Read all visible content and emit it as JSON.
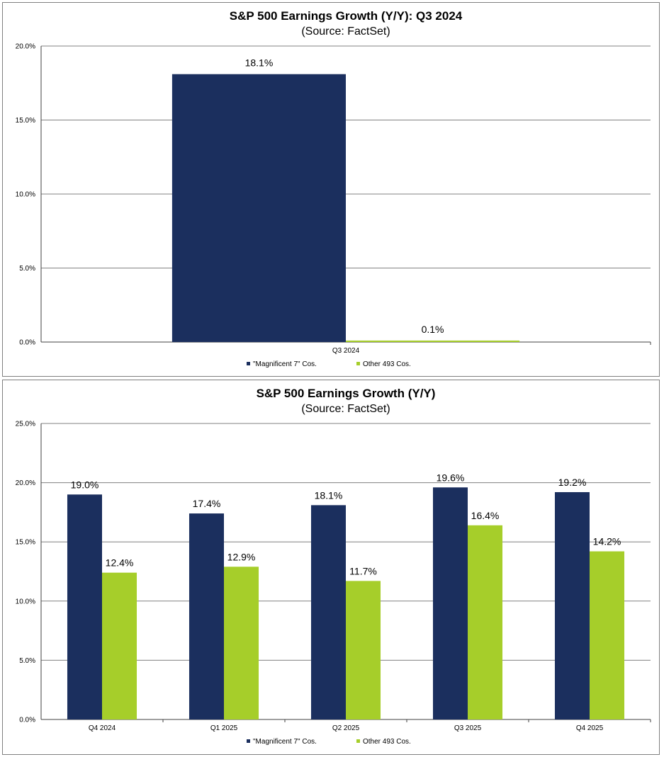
{
  "colors": {
    "magnificent": "#1b2f5e",
    "other": "#a6ce2a",
    "grid": "#808080"
  },
  "chart_data": [
    {
      "type": "bar",
      "title": "S&P 500 Earnings Growth (Y/Y): Q3 2024",
      "subtitle": "(Source: FactSet)",
      "categories": [
        "Q3 2024"
      ],
      "series": [
        {
          "name": "\"Magnificent 7\" Cos.",
          "values": [
            18.1
          ],
          "labels": [
            "18.1%"
          ]
        },
        {
          "name": "Other 493 Cos.",
          "values": [
            0.1
          ],
          "labels": [
            "0.1%"
          ]
        }
      ],
      "ylim": [
        0,
        20
      ],
      "yticks": [
        0,
        5,
        10,
        15,
        20
      ],
      "ytick_labels": [
        "0.0%",
        "5.0%",
        "10.0%",
        "15.0%",
        "20.0%"
      ],
      "grid": true,
      "legend": "bottom-center"
    },
    {
      "type": "bar",
      "title": "S&P 500 Earnings Growth (Y/Y)",
      "subtitle": "(Source: FactSet)",
      "categories": [
        "Q4 2024",
        "Q1 2025",
        "Q2 2025",
        "Q3 2025",
        "Q4 2025"
      ],
      "series": [
        {
          "name": "\"Magnificent 7\" Cos.",
          "values": [
            19.0,
            17.4,
            18.1,
            19.6,
            19.2
          ],
          "labels": [
            "19.0%",
            "17.4%",
            "18.1%",
            "19.6%",
            "19.2%"
          ]
        },
        {
          "name": "Other 493 Cos.",
          "values": [
            12.4,
            12.9,
            11.7,
            16.4,
            14.2
          ],
          "labels": [
            "12.4%",
            "12.9%",
            "11.7%",
            "16.4%",
            "14.2%"
          ]
        }
      ],
      "ylim": [
        0,
        25
      ],
      "yticks": [
        0,
        5,
        10,
        15,
        20,
        25
      ],
      "ytick_labels": [
        "0.0%",
        "5.0%",
        "10.0%",
        "15.0%",
        "20.0%",
        "25.0%"
      ],
      "grid": true,
      "legend": "bottom-center"
    }
  ]
}
